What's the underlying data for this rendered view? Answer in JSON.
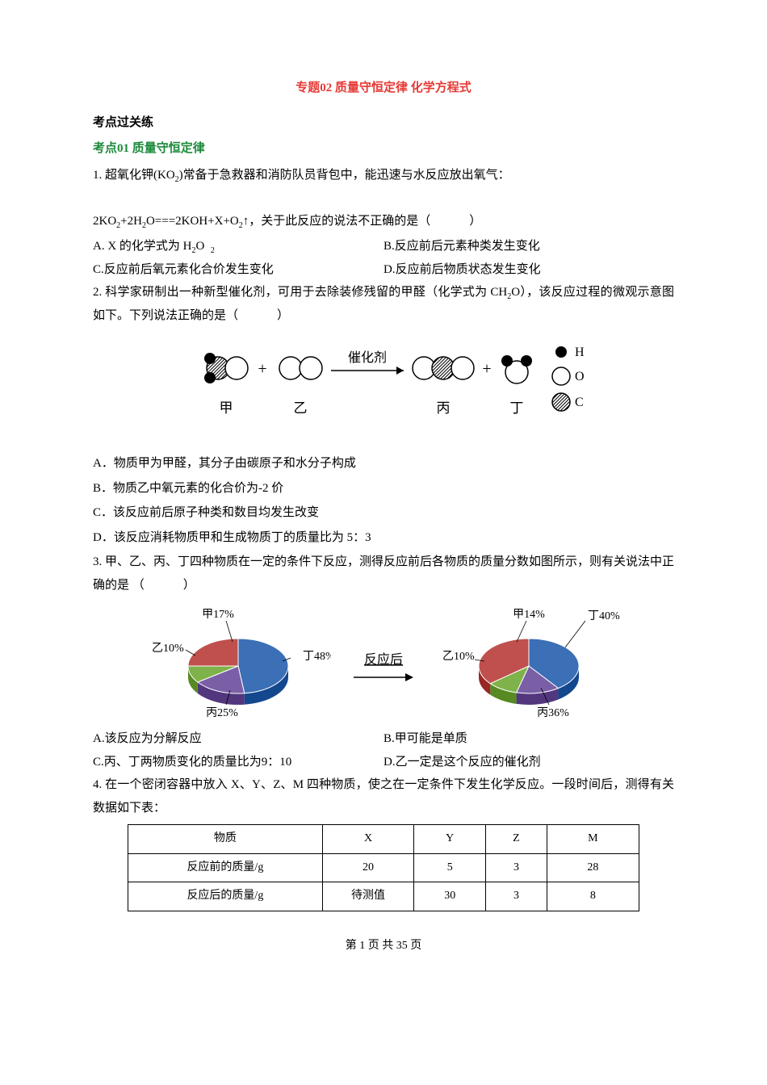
{
  "title": "专题02  质量守恒定律  化学方程式",
  "section_head": "考点过关练",
  "topic_head": "考点01 质量守恒定律",
  "q1": {
    "line1": "1. 超氧化钾(KO",
    "sub1": "2",
    "line1b": ")常备于急救器和消防队员背包中，能迅速与水反应放出氧气：",
    "eq_a": "2KO",
    "eq_s1": "2",
    "eq_b": "+2H",
    "eq_s2": "2",
    "eq_c": "O===2KOH+X+O",
    "eq_s3": "2",
    "eq_d": "↑，关于此反应的说法不正确的是（",
    "eq_e": "）",
    "optA_a": "A. X 的化学式为 H",
    "optA_sub": "2",
    "optA_b": "O",
    "optA_sub2": "2",
    "optB": "B.反应前后元素种类发生变化",
    "optC": "C.反应前后氧元素化合价发生变化",
    "optD": "D.反应前后物质状态发生变化"
  },
  "q2": {
    "line1a": "2. 科学家研制出一种新型催化剂，可用于去除装修残留的甲醛（化学式为 CH",
    "line1sub": "2",
    "line1b": "O），该反应过程的微观示意图如下。下列说法正确的是（",
    "line1c": "）",
    "diagram": {
      "arrow_label": "催化剂",
      "labels": [
        "甲",
        "乙",
        "丙",
        "丁"
      ],
      "legend": [
        {
          "txt": "H",
          "fill": "#000000"
        },
        {
          "txt": "O",
          "fill": "#ffffff"
        },
        {
          "txt": "C",
          "fill": "url(#hatch)"
        }
      ],
      "colors": {
        "stroke": "#000000"
      }
    },
    "optA": "A．物质甲为甲醛，其分子由碳原子和水分子构成",
    "optB": "B．物质乙中氧元素的化合价为-2 价",
    "optC": "C．该反应前后原子种类和数目均发生改变",
    "optD": "D．该反应消耗物质甲和生成物质丁的质量比为 5：3"
  },
  "q3": {
    "line1": "3. 甲、乙、丙、丁四种物质在一定的条件下反应，测得反应前后各物质的质量分数如图所示，则有关说法中正确的是 （",
    "line1b": "）",
    "pie_before": {
      "labels": {
        "jia": "甲17%",
        "yi": "乙10%",
        "bing": "丙25%",
        "ding": "丁48%"
      },
      "slices": [
        {
          "name": "ding",
          "start": 0,
          "end": 172.8,
          "color": "#3b6fb6"
        },
        {
          "name": "jia",
          "start": 172.8,
          "end": 234,
          "color": "#7a5fa6"
        },
        {
          "name": "yi",
          "start": 234,
          "end": 270,
          "color": "#7fb24a"
        },
        {
          "name": "bing",
          "start": 270,
          "end": 360,
          "color": "#c0504d"
        }
      ]
    },
    "arrow_label": "反应后",
    "pie_after": {
      "labels": {
        "jia": "甲14%",
        "yi": "乙10%",
        "bing": "丙36%",
        "ding": "丁40%"
      },
      "slices": [
        {
          "name": "ding",
          "start": 0,
          "end": 144,
          "color": "#3b6fb6"
        },
        {
          "name": "jia",
          "start": 144,
          "end": 194.4,
          "color": "#7a5fa6"
        },
        {
          "name": "yi",
          "start": 194.4,
          "end": 230.4,
          "color": "#7fb24a"
        },
        {
          "name": "bing",
          "start": 230.4,
          "end": 360,
          "color": "#c0504d"
        }
      ]
    },
    "optA": "A.该反应为分解反应",
    "optB": "B.甲可能是单质",
    "optC": "C.丙、丁两物质变化的质量比为9：10",
    "optD": "D.乙一定是这个反应的催化剂"
  },
  "q4": {
    "line1": "4. 在一个密闭容器中放入 X、Y、Z、M 四种物质，使之在一定条件下发生化学反应。一段时间后，测得有关数据如下表：",
    "table": {
      "headers": [
        "物质",
        "X",
        "Y",
        "Z",
        "M"
      ],
      "rows": [
        [
          "反应前的质量/g",
          "20",
          "5",
          "3",
          "28"
        ],
        [
          "反应后的质量/g",
          "待测值",
          "30",
          "3",
          "8"
        ]
      ],
      "col_widths": [
        "38%",
        "18%",
        "14%",
        "12%",
        "18%"
      ]
    }
  },
  "footer": "第 1 页 共 35 页"
}
